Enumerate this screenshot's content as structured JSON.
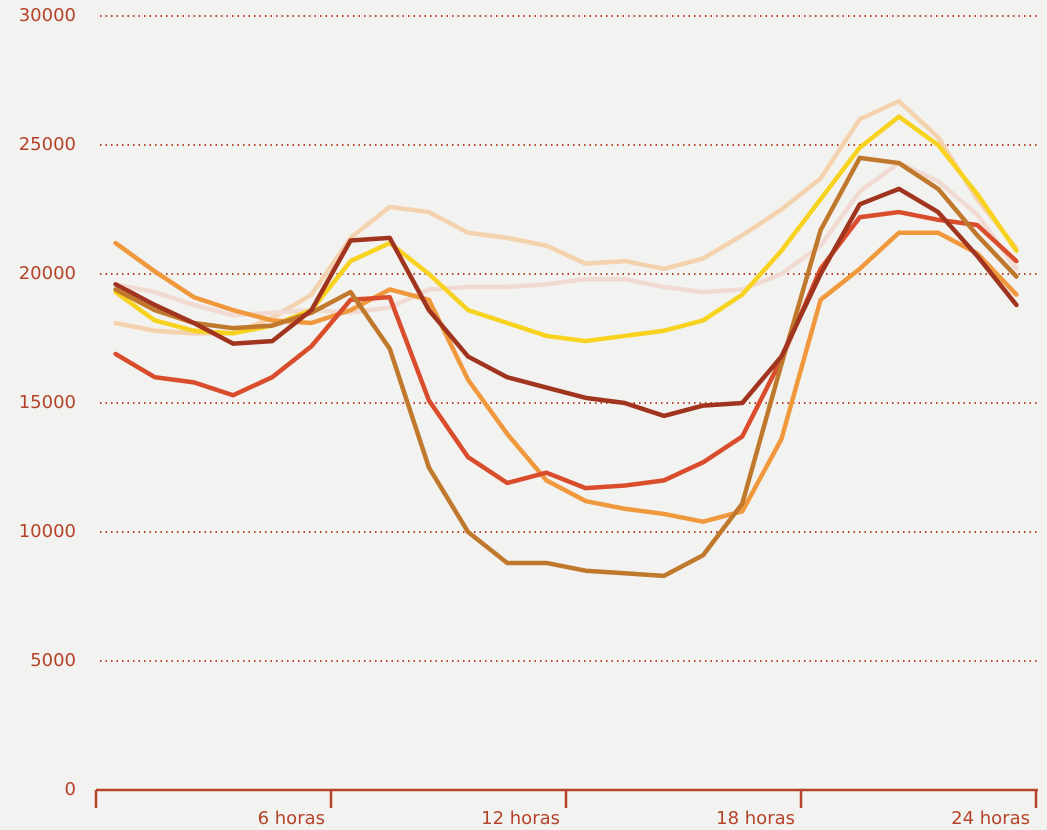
{
  "chart_data": {
    "type": "line",
    "x": [
      0.5,
      1.5,
      2.5,
      3.5,
      4.5,
      5.5,
      6.5,
      7.5,
      8.5,
      9.5,
      10.5,
      11.5,
      12.5,
      13.5,
      14.5,
      15.5,
      16.5,
      17.5,
      18.5,
      19.5,
      20.5,
      21.5,
      22.5,
      23.5
    ],
    "series": [
      {
        "color": "#f5d2ae",
        "values": [
          18100,
          17800,
          17700,
          17700,
          18300,
          19200,
          21400,
          22600,
          22400,
          21600,
          21400,
          21100,
          20400,
          20500,
          20200,
          20600,
          21500,
          22500,
          23700,
          26000,
          26700,
          25300,
          22900,
          21000
        ]
      },
      {
        "color": "#f0dad2",
        "values": [
          19600,
          19300,
          18800,
          18400,
          18500,
          18600,
          18500,
          18700,
          19400,
          19500,
          19500,
          19600,
          19800,
          19800,
          19500,
          19300,
          19400,
          20000,
          21100,
          23200,
          24300,
          23600,
          22300,
          20200
        ]
      },
      {
        "color": "#f7d21e",
        "values": [
          19300,
          18200,
          17800,
          17700,
          18000,
          18600,
          20500,
          21200,
          20000,
          18600,
          18100,
          17600,
          17400,
          17600,
          17800,
          18200,
          19200,
          20900,
          22900,
          24900,
          26100,
          25000,
          23100,
          20900
        ]
      },
      {
        "color": "#f0983c",
        "values": [
          21200,
          20100,
          19100,
          18600,
          18200,
          18100,
          18600,
          19400,
          19000,
          15900,
          13800,
          12000,
          11200,
          10900,
          10700,
          10400,
          10800,
          13600,
          19000,
          20200,
          21600,
          21600,
          20800,
          19200
        ]
      },
      {
        "color": "#d94c2c",
        "values": [
          16900,
          16000,
          15800,
          15300,
          16000,
          17200,
          19000,
          19100,
          15100,
          12900,
          11900,
          12300,
          11700,
          11800,
          12000,
          12700,
          13700,
          16700,
          20200,
          22200,
          22400,
          22100,
          21900,
          20500
        ]
      },
      {
        "color": "#c0782c",
        "values": [
          19400,
          18600,
          18100,
          17900,
          18000,
          18500,
          19300,
          17100,
          12500,
          10000,
          8800,
          8800,
          8500,
          8400,
          8300,
          9100,
          11100,
          16500,
          21700,
          24500,
          24300,
          23300,
          21500,
          19900
        ]
      },
      {
        "color": "#a0341f",
        "values": [
          19600,
          18800,
          18100,
          17300,
          17400,
          18600,
          21300,
          21400,
          18600,
          16800,
          16000,
          15600,
          15200,
          15000,
          14500,
          14900,
          15000,
          16800,
          20000,
          22700,
          23300,
          22400,
          20700,
          18800
        ]
      }
    ],
    "xlim": [
      0,
      24
    ],
    "xticks": [
      {
        "value": 6,
        "label": "6 horas"
      },
      {
        "value": 12,
        "label": "12 horas"
      },
      {
        "value": 18,
        "label": "18 horas"
      },
      {
        "value": 24,
        "label": "24 horas"
      }
    ],
    "ylim": [
      0,
      30000
    ],
    "yticks": [
      0,
      5000,
      10000,
      15000,
      20000,
      25000,
      30000
    ],
    "grid": true
  }
}
